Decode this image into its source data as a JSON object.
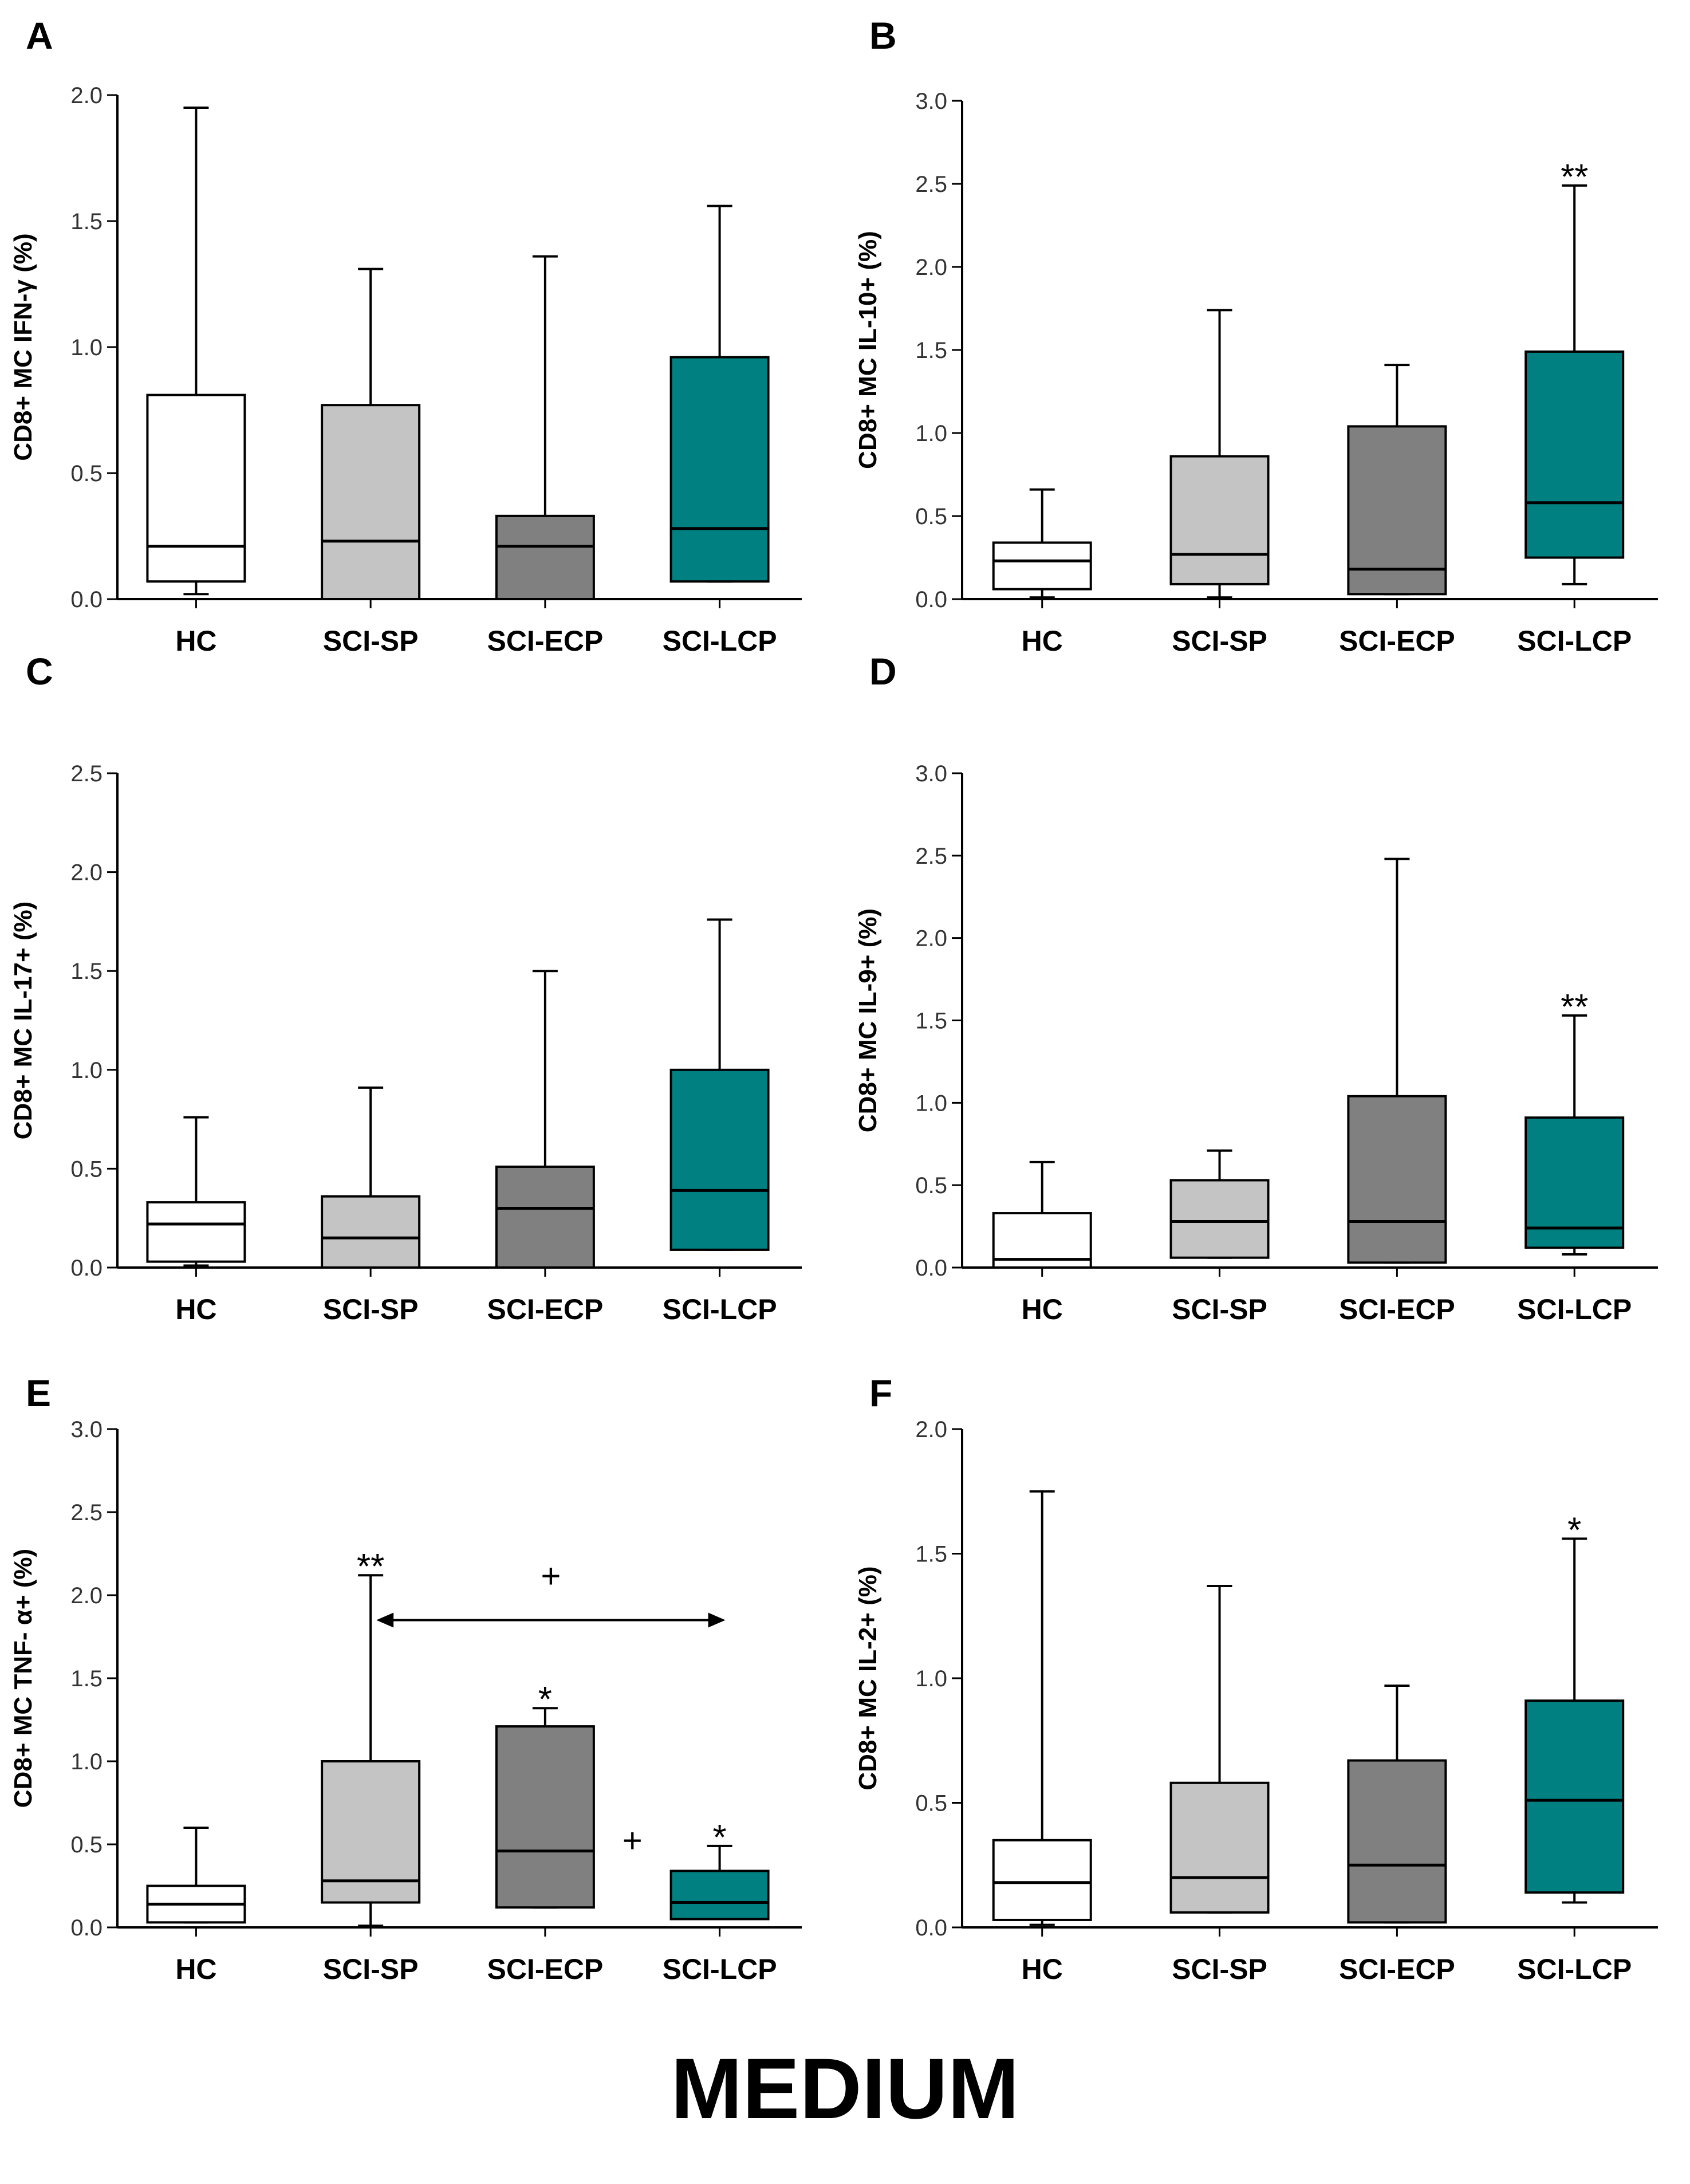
{
  "figure": {
    "footer_label": "MEDIUM"
  },
  "colors": {
    "HC": "#ffffff",
    "SCI-SP": "#c4c4c4",
    "SCI-ECP": "#808080",
    "SCI-LCP": "#008080",
    "stroke": "#000000"
  },
  "chart_data": [
    {
      "panel": "A",
      "type": "box",
      "ylabel": "CD8+ MC IFN-γ (%)",
      "ylim": [
        0,
        2.0
      ],
      "yticks": [
        "0.0",
        "0.5",
        "1.0",
        "1.5",
        "2.0"
      ],
      "ytick_values": [
        0,
        0.5,
        1.0,
        1.5,
        2.0
      ],
      "categories": [
        "HC",
        "SCI-SP",
        "SCI-ECP",
        "SCI-LCP"
      ],
      "boxes": [
        {
          "whisker_low": 0.02,
          "q1": 0.07,
          "median": 0.21,
          "q3": 0.81,
          "whisker_high": 1.95
        },
        {
          "whisker_low": 0.0,
          "q1": 0.0,
          "median": 0.23,
          "q3": 0.77,
          "whisker_high": 1.31
        },
        {
          "whisker_low": 0.0,
          "q1": 0.0,
          "median": 0.21,
          "q3": 0.33,
          "whisker_high": 1.36
        },
        {
          "whisker_low": 0.07,
          "q1": 0.07,
          "median": 0.28,
          "q3": 0.96,
          "whisker_high": 1.56
        }
      ],
      "annotations": []
    },
    {
      "panel": "B",
      "type": "box",
      "ylabel": "CD8+ MC IL-10+ (%)",
      "ylim": [
        0,
        3.0
      ],
      "yticks": [
        "0.0",
        "0.5",
        "1.0",
        "1.5",
        "2.0",
        "2.5",
        "3.0"
      ],
      "ytick_values": [
        0,
        0.5,
        1.0,
        1.5,
        2.0,
        2.5,
        3.0
      ],
      "categories": [
        "HC",
        "SCI-SP",
        "SCI-ECP",
        "SCI-LCP"
      ],
      "boxes": [
        {
          "whisker_low": 0.01,
          "q1": 0.06,
          "median": 0.23,
          "q3": 0.34,
          "whisker_high": 0.66
        },
        {
          "whisker_low": 0.01,
          "q1": 0.09,
          "median": 0.27,
          "q3": 0.86,
          "whisker_high": 1.74
        },
        {
          "whisker_low": 0.03,
          "q1": 0.03,
          "median": 0.18,
          "q3": 1.04,
          "whisker_high": 1.41
        },
        {
          "whisker_low": 0.09,
          "q1": 0.25,
          "median": 0.58,
          "q3": 1.49,
          "whisker_high": 2.49
        }
      ],
      "annotations": [
        {
          "category_index": 3,
          "y": 2.49,
          "text": "**"
        }
      ]
    },
    {
      "panel": "C",
      "type": "box",
      "ylabel": "CD8+ MC IL-17+ (%)",
      "ylim": [
        0,
        2.5
      ],
      "yticks": [
        "0.0",
        "0.5",
        "1.0",
        "1.5",
        "2.0",
        "2.5"
      ],
      "ytick_values": [
        0,
        0.5,
        1.0,
        1.5,
        2.0,
        2.5
      ],
      "categories": [
        "HC",
        "SCI-SP",
        "SCI-ECP",
        "SCI-LCP"
      ],
      "boxes": [
        {
          "whisker_low": 0.01,
          "q1": 0.03,
          "median": 0.22,
          "q3": 0.33,
          "whisker_high": 0.76
        },
        {
          "whisker_low": 0.0,
          "q1": 0.0,
          "median": 0.15,
          "q3": 0.36,
          "whisker_high": 0.91
        },
        {
          "whisker_low": 0.0,
          "q1": 0.0,
          "median": 0.3,
          "q3": 0.51,
          "whisker_high": 1.5
        },
        {
          "whisker_low": 0.09,
          "q1": 0.09,
          "median": 0.39,
          "q3": 1.0,
          "whisker_high": 1.76
        }
      ],
      "annotations": []
    },
    {
      "panel": "D",
      "type": "box",
      "ylabel": "CD8+ MC IL-9+ (%)",
      "ylim": [
        0,
        3.0
      ],
      "yticks": [
        "0.0",
        "0.5",
        "1.0",
        "1.5",
        "2.0",
        "2.5",
        "3.0"
      ],
      "ytick_values": [
        0,
        0.5,
        1.0,
        1.5,
        2.0,
        2.5,
        3.0
      ],
      "categories": [
        "HC",
        "SCI-SP",
        "SCI-ECP",
        "SCI-LCP"
      ],
      "boxes": [
        {
          "whisker_low": 0.0,
          "q1": 0.0,
          "median": 0.05,
          "q3": 0.33,
          "whisker_high": 0.64
        },
        {
          "whisker_low": 0.06,
          "q1": 0.06,
          "median": 0.28,
          "q3": 0.53,
          "whisker_high": 0.71
        },
        {
          "whisker_low": 0.03,
          "q1": 0.03,
          "median": 0.28,
          "q3": 1.04,
          "whisker_high": 2.48
        },
        {
          "whisker_low": 0.08,
          "q1": 0.12,
          "median": 0.24,
          "q3": 0.91,
          "whisker_high": 1.53
        }
      ],
      "annotations": [
        {
          "category_index": 3,
          "y": 1.53,
          "text": "**"
        }
      ]
    },
    {
      "panel": "E",
      "type": "box",
      "ylabel": "CD8+ MC TNF- α+ (%)",
      "ylim": [
        0,
        3.0
      ],
      "yticks": [
        "0.0",
        "0.5",
        "1.0",
        "1.5",
        "2.0",
        "2.5",
        "3.0"
      ],
      "ytick_values": [
        0,
        0.5,
        1.0,
        1.5,
        2.0,
        2.5,
        3.0
      ],
      "categories": [
        "HC",
        "SCI-SP",
        "SCI-ECP",
        "SCI-LCP"
      ],
      "boxes": [
        {
          "whisker_low": 0.03,
          "q1": 0.03,
          "median": 0.14,
          "q3": 0.25,
          "whisker_high": 0.6
        },
        {
          "whisker_low": 0.01,
          "q1": 0.15,
          "median": 0.28,
          "q3": 1.0,
          "whisker_high": 2.12
        },
        {
          "whisker_low": 0.12,
          "q1": 0.12,
          "median": 0.46,
          "q3": 1.21,
          "whisker_high": 1.32
        },
        {
          "whisker_low": 0.05,
          "q1": 0.05,
          "median": 0.15,
          "q3": 0.34,
          "whisker_high": 0.49
        }
      ],
      "annotations": [
        {
          "category_index": 1,
          "y": 2.12,
          "text": "**"
        },
        {
          "category_index": 2,
          "y": 1.32,
          "text": "*"
        },
        {
          "category_index": 3,
          "y": 0.49,
          "text": "*"
        }
      ],
      "comparisons": [
        {
          "from_index": 1,
          "to_index": 3,
          "y": 1.85,
          "label": "+",
          "label_y": 2.12
        },
        {
          "between": [
            2,
            3
          ],
          "label": "+",
          "label_y": 0.52
        }
      ]
    },
    {
      "panel": "F",
      "type": "box",
      "ylabel": "CD8+ MC IL-2+ (%)",
      "ylim": [
        0,
        2.0
      ],
      "yticks": [
        "0.0",
        "0.5",
        "1.0",
        "1.5",
        "2.0"
      ],
      "ytick_values": [
        0,
        0.5,
        1.0,
        1.5,
        2.0
      ],
      "categories": [
        "HC",
        "SCI-SP",
        "SCI-ECP",
        "SCI-LCP"
      ],
      "boxes": [
        {
          "whisker_low": 0.01,
          "q1": 0.03,
          "median": 0.18,
          "q3": 0.35,
          "whisker_high": 1.75
        },
        {
          "whisker_low": 0.06,
          "q1": 0.06,
          "median": 0.2,
          "q3": 0.58,
          "whisker_high": 1.37
        },
        {
          "whisker_low": 0.02,
          "q1": 0.02,
          "median": 0.25,
          "q3": 0.67,
          "whisker_high": 0.97
        },
        {
          "whisker_low": 0.1,
          "q1": 0.14,
          "median": 0.51,
          "q3": 0.91,
          "whisker_high": 1.56
        }
      ],
      "annotations": [
        {
          "category_index": 3,
          "y": 1.56,
          "text": "*"
        }
      ]
    }
  ]
}
